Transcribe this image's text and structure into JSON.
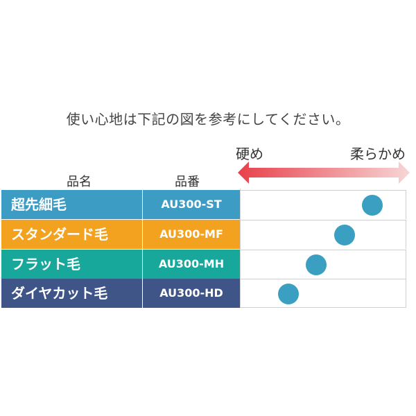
{
  "intro_text": "使い心地は下記の図を参考にしてください。",
  "headers": {
    "name": "品名",
    "code": "品番"
  },
  "scale": {
    "hard_label": "硬め",
    "soft_label": "柔らかめ",
    "arrow_color_start": "#e8404a",
    "arrow_color_end": "#f7d6d6"
  },
  "dot_color": "#3a9fc0",
  "rows": [
    {
      "name": "超先細毛",
      "code": "AU300-ST",
      "color": "#3d9cc4",
      "softness": 0.8
    },
    {
      "name": "スタンダード毛",
      "code": "AU300-MF",
      "color": "#f3a21f",
      "softness": 0.6
    },
    {
      "name": "フラット毛",
      "code": "AU300-MH",
      "color": "#17a79b",
      "softness": 0.4
    },
    {
      "name": "ダイヤカット毛",
      "code": "AU300-HD",
      "color": "#3f5588",
      "softness": 0.2
    }
  ]
}
